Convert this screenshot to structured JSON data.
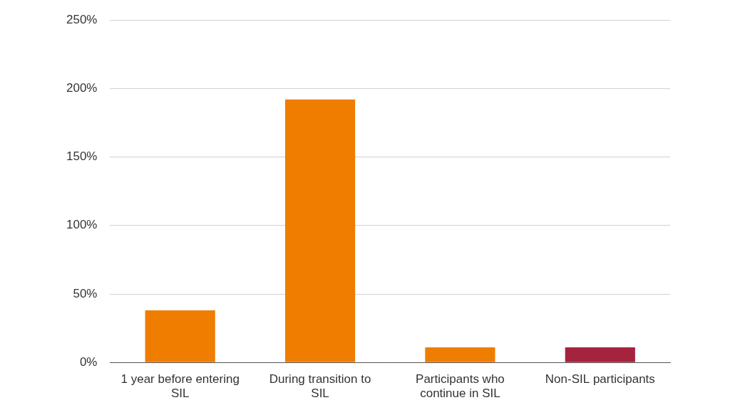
{
  "chart_data": {
    "type": "bar",
    "categories": [
      "1 year before entering SIL",
      "During transition to SIL",
      "Participants who continue in SIL",
      "Non-SIL participants"
    ],
    "values": [
      38,
      192,
      11,
      11
    ],
    "colors": [
      "#ef7d00",
      "#ef7d00",
      "#ef7d00",
      "#a6233f"
    ],
    "ylim": [
      0,
      250
    ],
    "yticks": [
      {
        "value": 0,
        "label": "0%"
      },
      {
        "value": 50,
        "label": "50%"
      },
      {
        "value": 100,
        "label": "100%"
      },
      {
        "value": 150,
        "label": "150%"
      },
      {
        "value": 200,
        "label": "200%"
      },
      {
        "value": 250,
        "label": "250%"
      }
    ],
    "grid": true
  }
}
